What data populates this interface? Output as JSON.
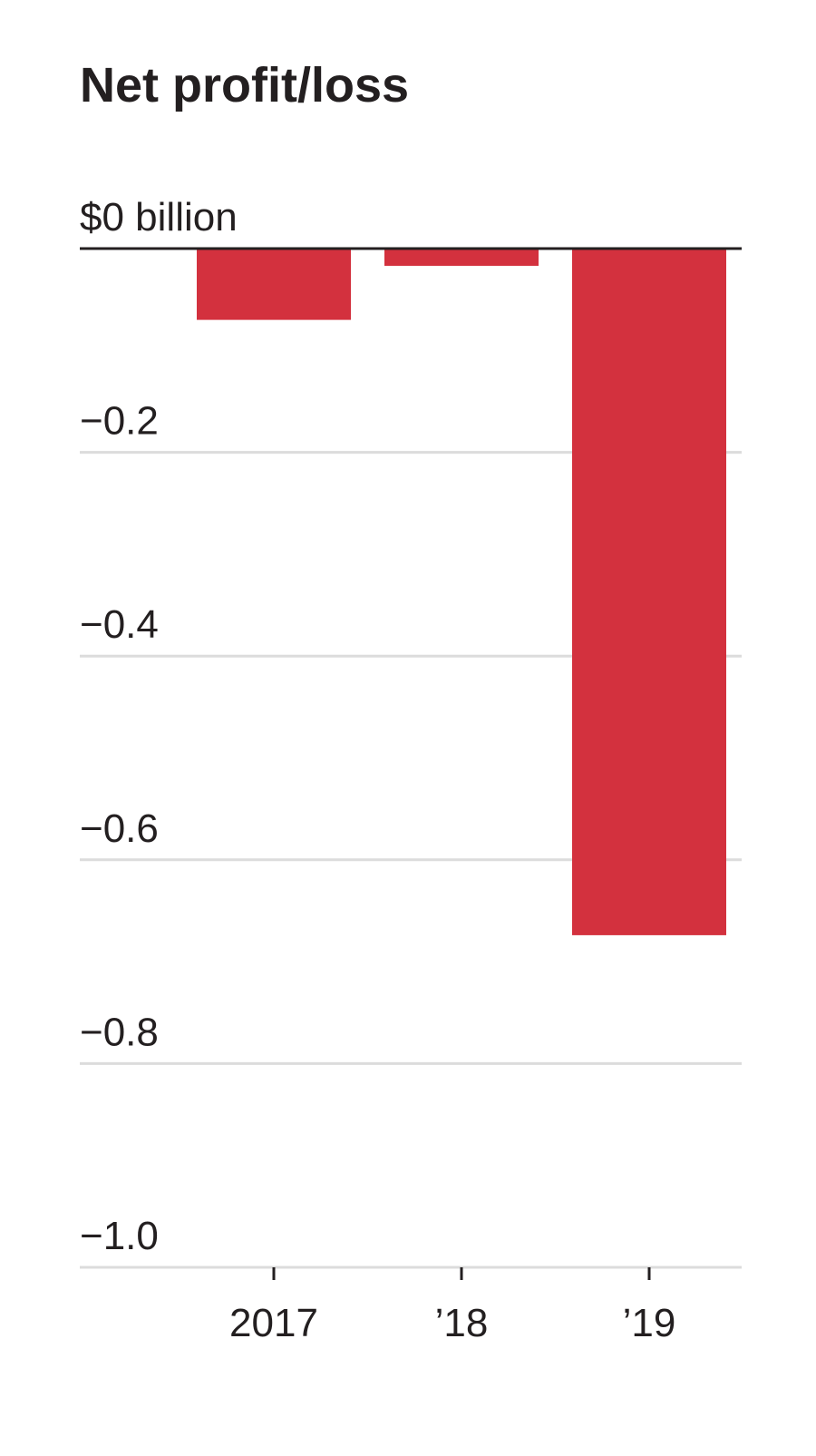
{
  "chart_data": {
    "type": "bar",
    "title": "Net profit/loss",
    "categories": [
      "2017",
      "’18",
      "’19"
    ],
    "values": [
      -0.07,
      -0.017,
      -0.674
    ],
    "color": "#d3313e",
    "ylim": [
      -1.0,
      0
    ],
    "yticks": [
      {
        "value": 0,
        "label": "$0 billion"
      },
      {
        "value": -0.2,
        "label": "−0.2"
      },
      {
        "value": -0.4,
        "label": "−0.4"
      },
      {
        "value": -0.6,
        "label": "−0.6"
      },
      {
        "value": -0.8,
        "label": "−0.8"
      },
      {
        "value": -1.0,
        "label": "−1.0"
      }
    ],
    "grid": true
  }
}
